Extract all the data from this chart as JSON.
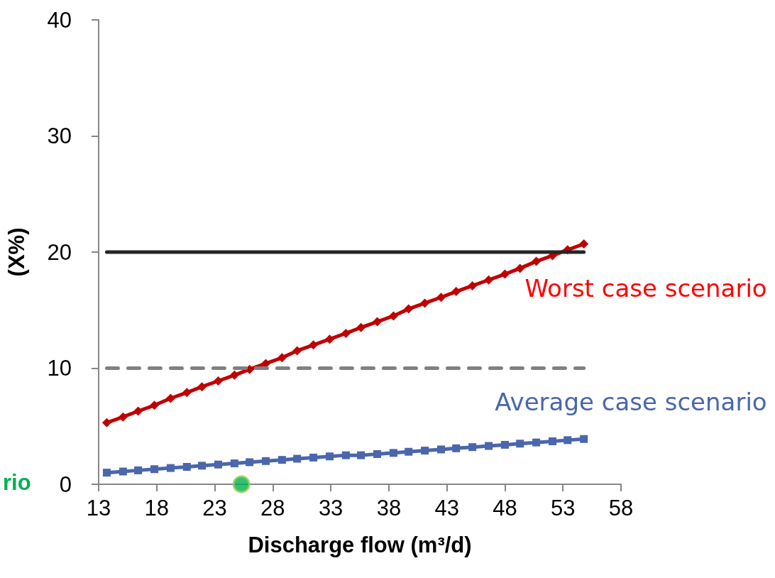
{
  "chart_data": {
    "type": "line",
    "xlabel": "Discharge flow (m³/d)",
    "ylabel": "(X%)",
    "xlim": [
      13,
      58
    ],
    "xticks": [
      13,
      18,
      23,
      28,
      33,
      38,
      43,
      48,
      53,
      58
    ],
    "ylim": [
      0,
      40
    ],
    "yticks": [
      0,
      10,
      20,
      30,
      40
    ],
    "grid": false,
    "legend": false,
    "series": [
      {
        "name": "Worst case scenario",
        "color": "#c00000",
        "marker": "diamond",
        "line_style": "solid",
        "x": [
          13.7,
          15.1,
          16.4,
          17.8,
          19.2,
          20.6,
          21.9,
          23.3,
          24.7,
          26.0,
          27.4,
          28.8,
          30.1,
          31.5,
          32.9,
          34.3,
          35.6,
          37.0,
          38.4,
          39.7,
          41.1,
          42.5,
          43.8,
          45.2,
          46.6,
          48.0,
          49.3,
          50.7,
          52.1,
          53.4,
          54.8
        ],
        "values": [
          5.3,
          5.8,
          6.3,
          6.8,
          7.4,
          7.9,
          8.4,
          8.9,
          9.4,
          9.9,
          10.4,
          10.9,
          11.5,
          12.0,
          12.5,
          13.0,
          13.5,
          14.0,
          14.5,
          15.1,
          15.6,
          16.1,
          16.6,
          17.1,
          17.6,
          18.1,
          18.6,
          19.2,
          19.7,
          20.2,
          20.7
        ]
      },
      {
        "name": "Average case scenario",
        "color": "#4a66ac",
        "marker": "square",
        "line_style": "solid",
        "x": [
          13.7,
          15.1,
          16.4,
          17.8,
          19.2,
          20.6,
          21.9,
          23.3,
          24.7,
          26.0,
          27.4,
          28.8,
          30.1,
          31.5,
          32.9,
          34.3,
          35.6,
          37.0,
          38.4,
          39.7,
          41.1,
          42.5,
          43.8,
          45.2,
          46.6,
          48.0,
          49.3,
          50.7,
          52.1,
          53.4,
          54.8
        ],
        "values": [
          1.0,
          1.1,
          1.2,
          1.3,
          1.4,
          1.5,
          1.6,
          1.7,
          1.8,
          1.9,
          2.0,
          2.1,
          2.2,
          2.3,
          2.4,
          2.5,
          2.5,
          2.6,
          2.7,
          2.8,
          2.9,
          3.0,
          3.1,
          3.2,
          3.3,
          3.4,
          3.5,
          3.6,
          3.7,
          3.8,
          3.9
        ]
      },
      {
        "color": "#262626",
        "marker": "none",
        "line_style": "solid",
        "x": [
          13.7,
          54.8
        ],
        "values": [
          20,
          20
        ]
      },
      {
        "color": "#808080",
        "marker": "none",
        "line_style": "dashed",
        "x": [
          13.7,
          54.8
        ],
        "values": [
          10,
          10
        ]
      },
      {
        "type": "scatter",
        "color": "#00b050",
        "marker": "circle",
        "x": [
          25.3
        ],
        "values": [
          0
        ]
      }
    ],
    "annotations": [
      "rio"
    ]
  }
}
